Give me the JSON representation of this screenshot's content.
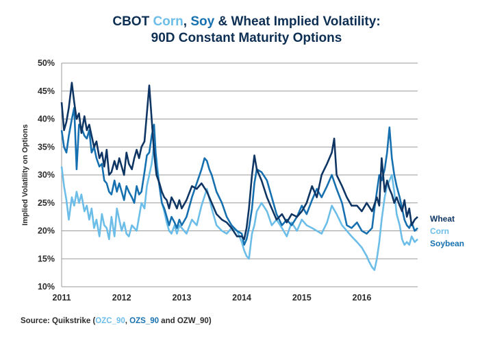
{
  "chart_data": {
    "type": "line",
    "title": {
      "prefix": "CBOT ",
      "corn_word": "Corn",
      "sep": ", ",
      "soy_word": "Soy",
      "suffix": " & Wheat Implied Volatility:",
      "line2": "90D Constant Maturity Options"
    },
    "ylabel": "Implied Volatility on Options",
    "xlabel": "",
    "ylim": [
      10,
      50
    ],
    "xlim": [
      2011.0,
      2016.93
    ],
    "yticks": [
      {
        "value": 10,
        "label": "10%"
      },
      {
        "value": 15,
        "label": "15%"
      },
      {
        "value": 20,
        "label": "20%"
      },
      {
        "value": 25,
        "label": "25%"
      },
      {
        "value": 30,
        "label": "30%"
      },
      {
        "value": 35,
        "label": "35%"
      },
      {
        "value": 40,
        "label": "40%"
      },
      {
        "value": 45,
        "label": "45%"
      },
      {
        "value": 50,
        "label": "50%"
      }
    ],
    "xticks": [
      {
        "value": 2011,
        "label": "2011"
      },
      {
        "value": 2012,
        "label": "2012"
      },
      {
        "value": 2013,
        "label": "2013"
      },
      {
        "value": 2014,
        "label": "2014"
      },
      {
        "value": 2015,
        "label": "2015"
      },
      {
        "value": 2016,
        "label": "2016"
      }
    ],
    "grid": true,
    "legend_position": "right",
    "series": [
      {
        "name": "Corn",
        "color": "#6cbde8",
        "x": [
          2011.0,
          2011.04,
          2011.08,
          2011.12,
          2011.17,
          2011.21,
          2011.25,
          2011.29,
          2011.33,
          2011.38,
          2011.42,
          2011.46,
          2011.5,
          2011.54,
          2011.58,
          2011.63,
          2011.67,
          2011.71,
          2011.75,
          2011.79,
          2011.83,
          2011.88,
          2011.92,
          2011.96,
          2012.0,
          2012.04,
          2012.08,
          2012.12,
          2012.17,
          2012.21,
          2012.25,
          2012.29,
          2012.33,
          2012.38,
          2012.42,
          2012.46,
          2012.5,
          2012.54,
          2012.58,
          2012.63,
          2012.67,
          2012.71,
          2012.75,
          2012.79,
          2012.83,
          2012.88,
          2012.92,
          2012.96,
          2013.0,
          2013.08,
          2013.17,
          2013.25,
          2013.33,
          2013.42,
          2013.5,
          2013.58,
          2013.67,
          2013.75,
          2013.83,
          2013.92,
          2014.0,
          2014.04,
          2014.08,
          2014.12,
          2014.17,
          2014.21,
          2014.25,
          2014.33,
          2014.42,
          2014.5,
          2014.58,
          2014.67,
          2014.75,
          2014.83,
          2014.92,
          2015.0,
          2015.08,
          2015.17,
          2015.25,
          2015.33,
          2015.42,
          2015.5,
          2015.58,
          2015.67,
          2015.75,
          2015.83,
          2015.92,
          2016.0,
          2016.08,
          2016.12,
          2016.17,
          2016.21,
          2016.25,
          2016.29,
          2016.33,
          2016.38,
          2016.42,
          2016.46,
          2016.5,
          2016.54,
          2016.58,
          2016.63,
          2016.67,
          2016.71,
          2016.75,
          2016.79,
          2016.83,
          2016.88,
          2016.93
        ],
        "values": [
          31.5,
          28.0,
          25.5,
          22.0,
          26.0,
          24.5,
          27.0,
          25.0,
          26.5,
          23.5,
          24.5,
          22.0,
          24.0,
          20.5,
          22.0,
          19.0,
          23.0,
          21.0,
          20.5,
          18.5,
          22.5,
          19.0,
          24.0,
          22.0,
          20.0,
          21.5,
          19.5,
          19.0,
          21.0,
          20.5,
          20.0,
          22.5,
          25.0,
          24.0,
          28.0,
          30.0,
          32.0,
          35.5,
          33.0,
          28.0,
          25.0,
          23.5,
          21.5,
          20.0,
          19.5,
          21.0,
          19.5,
          21.0,
          20.5,
          19.5,
          22.0,
          21.0,
          24.5,
          27.5,
          24.0,
          21.0,
          20.0,
          19.5,
          20.5,
          20.0,
          18.0,
          16.5,
          15.5,
          15.0,
          19.5,
          21.0,
          23.5,
          25.0,
          23.5,
          21.0,
          22.0,
          20.5,
          19.0,
          21.5,
          20.0,
          22.0,
          21.0,
          20.5,
          20.0,
          19.5,
          21.5,
          24.5,
          23.0,
          21.0,
          20.0,
          19.0,
          18.0,
          17.0,
          15.5,
          14.5,
          13.5,
          13.0,
          15.0,
          18.0,
          22.0,
          26.0,
          28.0,
          29.0,
          30.0,
          27.0,
          23.0,
          21.0,
          18.5,
          17.5,
          18.0,
          17.5,
          19.0,
          18.0,
          18.5
        ]
      },
      {
        "name": "Soybean",
        "color": "#1670b0",
        "x": [
          2011.0,
          2011.04,
          2011.08,
          2011.12,
          2011.17,
          2011.21,
          2011.25,
          2011.29,
          2011.33,
          2011.38,
          2011.42,
          2011.46,
          2011.5,
          2011.54,
          2011.58,
          2011.63,
          2011.67,
          2011.71,
          2011.75,
          2011.79,
          2011.83,
          2011.88,
          2011.92,
          2011.96,
          2012.0,
          2012.04,
          2012.08,
          2012.12,
          2012.17,
          2012.21,
          2012.25,
          2012.29,
          2012.33,
          2012.38,
          2012.42,
          2012.46,
          2012.5,
          2012.54,
          2012.58,
          2012.63,
          2012.67,
          2012.71,
          2012.75,
          2012.79,
          2012.83,
          2012.88,
          2012.92,
          2012.96,
          2013.0,
          2013.08,
          2013.17,
          2013.25,
          2013.33,
          2013.38,
          2013.42,
          2013.46,
          2013.5,
          2013.58,
          2013.67,
          2013.75,
          2013.83,
          2013.92,
          2014.0,
          2014.04,
          2014.08,
          2014.12,
          2014.17,
          2014.21,
          2014.25,
          2014.33,
          2014.42,
          2014.5,
          2014.58,
          2014.67,
          2014.75,
          2014.83,
          2014.92,
          2015.0,
          2015.08,
          2015.17,
          2015.25,
          2015.33,
          2015.42,
          2015.5,
          2015.58,
          2015.67,
          2015.75,
          2015.83,
          2015.92,
          2016.0,
          2016.08,
          2016.17,
          2016.21,
          2016.25,
          2016.29,
          2016.33,
          2016.38,
          2016.42,
          2016.46,
          2016.5,
          2016.54,
          2016.58,
          2016.63,
          2016.67,
          2016.71,
          2016.75,
          2016.79,
          2016.83,
          2016.88,
          2016.93
        ],
        "values": [
          38.0,
          35.0,
          34.0,
          37.0,
          40.0,
          42.0,
          31.0,
          39.0,
          38.5,
          37.0,
          36.5,
          38.0,
          34.0,
          35.0,
          33.0,
          31.5,
          32.0,
          29.0,
          28.5,
          27.0,
          26.5,
          29.0,
          27.0,
          28.5,
          27.0,
          25.5,
          28.0,
          27.0,
          26.0,
          25.0,
          28.0,
          26.5,
          27.0,
          30.5,
          33.5,
          34.0,
          37.0,
          39.0,
          31.5,
          28.0,
          25.0,
          24.0,
          22.5,
          21.0,
          22.5,
          21.5,
          20.5,
          22.0,
          21.0,
          22.5,
          26.0,
          28.5,
          31.0,
          33.0,
          32.5,
          31.0,
          30.0,
          27.0,
          25.0,
          22.5,
          21.0,
          20.0,
          19.5,
          17.5,
          18.5,
          20.5,
          24.0,
          28.5,
          31.0,
          30.5,
          29.0,
          26.0,
          23.0,
          21.0,
          22.0,
          21.0,
          22.5,
          24.5,
          23.0,
          25.5,
          27.5,
          26.0,
          28.0,
          30.0,
          27.5,
          25.0,
          21.0,
          20.5,
          21.5,
          20.0,
          19.5,
          20.5,
          24.0,
          27.0,
          30.0,
          29.0,
          31.0,
          34.0,
          38.5,
          33.0,
          30.0,
          28.0,
          26.0,
          24.0,
          22.0,
          21.0,
          20.5,
          21.5,
          20.0,
          20.5
        ]
      },
      {
        "name": "Wheat",
        "color": "#0e3563",
        "x": [
          2011.0,
          2011.04,
          2011.08,
          2011.12,
          2011.17,
          2011.21,
          2011.25,
          2011.29,
          2011.33,
          2011.38,
          2011.42,
          2011.46,
          2011.5,
          2011.54,
          2011.58,
          2011.63,
          2011.67,
          2011.71,
          2011.75,
          2011.79,
          2011.83,
          2011.88,
          2011.92,
          2011.96,
          2012.0,
          2012.04,
          2012.08,
          2012.12,
          2012.17,
          2012.21,
          2012.25,
          2012.29,
          2012.33,
          2012.38,
          2012.42,
          2012.46,
          2012.5,
          2012.54,
          2012.58,
          2012.63,
          2012.67,
          2012.71,
          2012.75,
          2012.79,
          2012.83,
          2012.88,
          2012.92,
          2012.96,
          2013.0,
          2013.08,
          2013.17,
          2013.25,
          2013.33,
          2013.42,
          2013.5,
          2013.58,
          2013.67,
          2013.75,
          2013.83,
          2013.92,
          2014.0,
          2014.04,
          2014.08,
          2014.12,
          2014.17,
          2014.21,
          2014.25,
          2014.33,
          2014.42,
          2014.5,
          2014.58,
          2014.67,
          2014.75,
          2014.83,
          2014.92,
          2015.0,
          2015.08,
          2015.17,
          2015.25,
          2015.33,
          2015.42,
          2015.5,
          2015.54,
          2015.58,
          2015.67,
          2015.75,
          2015.83,
          2015.92,
          2016.0,
          2016.08,
          2016.17,
          2016.25,
          2016.29,
          2016.33,
          2016.38,
          2016.42,
          2016.46,
          2016.5,
          2016.54,
          2016.58,
          2016.63,
          2016.67,
          2016.71,
          2016.75,
          2016.79,
          2016.83,
          2016.88,
          2016.93
        ],
        "values": [
          43.0,
          38.0,
          39.5,
          42.0,
          46.5,
          43.0,
          40.0,
          41.0,
          37.5,
          40.5,
          38.0,
          39.0,
          37.0,
          35.0,
          36.0,
          33.0,
          34.0,
          31.5,
          34.5,
          30.0,
          30.5,
          32.5,
          31.0,
          33.0,
          31.5,
          30.0,
          34.0,
          32.0,
          31.0,
          33.0,
          34.5,
          33.0,
          35.0,
          36.0,
          41.0,
          46.0,
          40.0,
          34.0,
          30.0,
          28.5,
          27.0,
          26.0,
          25.5,
          24.0,
          26.0,
          25.0,
          24.0,
          25.5,
          24.0,
          25.5,
          28.0,
          27.5,
          28.5,
          27.0,
          25.0,
          23.0,
          22.0,
          21.5,
          20.5,
          19.0,
          19.0,
          18.5,
          20.5,
          24.0,
          30.0,
          33.5,
          31.0,
          29.0,
          26.0,
          24.0,
          22.0,
          23.0,
          21.5,
          23.0,
          22.5,
          23.5,
          25.0,
          28.0,
          26.0,
          30.0,
          32.0,
          34.0,
          36.5,
          30.0,
          28.0,
          26.0,
          24.5,
          24.5,
          23.5,
          25.0,
          23.5,
          26.0,
          24.5,
          33.0,
          27.0,
          29.0,
          27.5,
          26.5,
          25.0,
          26.0,
          24.5,
          23.5,
          25.5,
          22.5,
          24.0,
          21.0,
          22.0,
          22.5
        ]
      }
    ],
    "legend": [
      {
        "label": "Wheat",
        "color": "#0e3563"
      },
      {
        "label": "Corn",
        "color": "#6cbde8"
      },
      {
        "label": "Soybean",
        "color": "#1670b0"
      }
    ]
  },
  "source": {
    "prefix": "Source: Quikstrike (",
    "corn_code": "OZC_90",
    "sep": ", ",
    "soy_code": "OZS_90",
    "suffix": " and OZW_90)"
  }
}
